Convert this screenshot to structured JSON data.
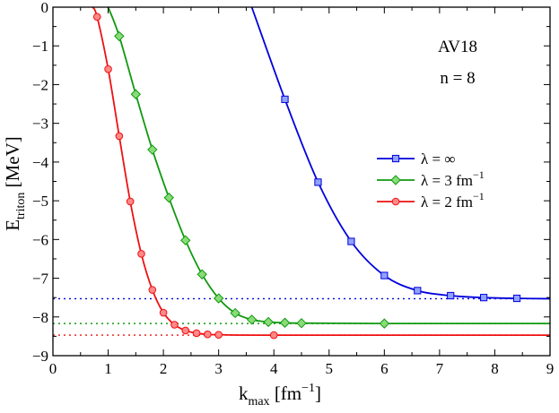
{
  "chart_data": {
    "type": "line",
    "annotations": [
      "AV18",
      "n = 8"
    ],
    "xlabel": {
      "main": "k",
      "sub": "max",
      "unit": "[fm",
      "unit_exp": "−1",
      "close": "]"
    },
    "ylabel": {
      "main": "E",
      "sub": "triton",
      "unit": "[MeV]"
    },
    "xlim": [
      0,
      9
    ],
    "ylim": [
      -9,
      0
    ],
    "xticks": [
      0,
      1,
      2,
      3,
      4,
      5,
      6,
      7,
      8,
      9
    ],
    "xtick_labels": [
      "0",
      "1",
      "2",
      "3",
      "4",
      "5",
      "6",
      "7",
      "8",
      "9"
    ],
    "yticks": [
      0,
      -1,
      -2,
      -3,
      -4,
      -5,
      -6,
      -7,
      -8,
      -9
    ],
    "ytick_labels": [
      "0",
      "−1",
      "−2",
      "−3",
      "−4",
      "−5",
      "−6",
      "−7",
      "−8",
      "−9"
    ],
    "series": [
      {
        "name": "λ = ∞",
        "legend": {
          "base": "λ = ∞",
          "exp": ""
        },
        "color": "#0000dd",
        "fill": "#8fa2ff",
        "marker": "square",
        "curve": [
          [
            3.6,
            0
          ],
          [
            4.2,
            -2.38
          ],
          [
            4.8,
            -4.52
          ],
          [
            5.4,
            -6.05
          ],
          [
            6.0,
            -6.93
          ],
          [
            6.6,
            -7.32
          ],
          [
            7.2,
            -7.45
          ],
          [
            7.8,
            -7.5
          ],
          [
            8.4,
            -7.52
          ],
          [
            9.0,
            -7.53
          ]
        ],
        "points": [
          [
            4.2,
            -2.38
          ],
          [
            4.8,
            -4.52
          ],
          [
            5.4,
            -6.05
          ],
          [
            6.0,
            -6.93
          ],
          [
            6.6,
            -7.32
          ],
          [
            7.2,
            -7.45
          ],
          [
            7.8,
            -7.5
          ],
          [
            8.4,
            -7.52
          ]
        ],
        "asymptote": -7.53
      },
      {
        "name": "λ = 3 fm−1",
        "legend": {
          "base": "λ = 3 fm",
          "exp": "−1"
        },
        "color": "#119911",
        "fill": "#88dd77",
        "marker": "diamond",
        "curve": [
          [
            1.0,
            0
          ],
          [
            1.2,
            -0.75
          ],
          [
            1.5,
            -2.25
          ],
          [
            1.8,
            -3.68
          ],
          [
            2.1,
            -4.92
          ],
          [
            2.4,
            -6.02
          ],
          [
            2.7,
            -6.9
          ],
          [
            3.0,
            -7.52
          ],
          [
            3.3,
            -7.9
          ],
          [
            3.6,
            -8.07
          ],
          [
            3.9,
            -8.13
          ],
          [
            4.2,
            -8.15
          ],
          [
            4.5,
            -8.16
          ],
          [
            6.0,
            -8.17
          ],
          [
            9.0,
            -8.17
          ]
        ],
        "points": [
          [
            1.2,
            -0.75
          ],
          [
            1.5,
            -2.25
          ],
          [
            1.8,
            -3.68
          ],
          [
            2.1,
            -4.92
          ],
          [
            2.4,
            -6.02
          ],
          [
            2.7,
            -6.9
          ],
          [
            3.0,
            -7.52
          ],
          [
            3.3,
            -7.9
          ],
          [
            3.6,
            -8.07
          ],
          [
            3.9,
            -8.13
          ],
          [
            4.2,
            -8.15
          ],
          [
            4.5,
            -8.16
          ],
          [
            6.0,
            -8.17
          ]
        ],
        "asymptote": -8.17
      },
      {
        "name": "λ = 2 fm−1",
        "legend": {
          "base": "λ = 2 fm",
          "exp": "−1"
        },
        "color": "#ee1111",
        "fill": "#ff8888",
        "marker": "circle",
        "curve": [
          [
            0.72,
            0
          ],
          [
            0.8,
            -0.25
          ],
          [
            1.0,
            -1.6
          ],
          [
            1.2,
            -3.33
          ],
          [
            1.4,
            -5.02
          ],
          [
            1.6,
            -6.37
          ],
          [
            1.8,
            -7.3
          ],
          [
            2.0,
            -7.89
          ],
          [
            2.2,
            -8.2
          ],
          [
            2.4,
            -8.35
          ],
          [
            2.6,
            -8.42
          ],
          [
            2.8,
            -8.45
          ],
          [
            3.0,
            -8.46
          ],
          [
            4.0,
            -8.47
          ],
          [
            9.0,
            -8.47
          ]
        ],
        "points": [
          [
            0.8,
            -0.25
          ],
          [
            1.0,
            -1.6
          ],
          [
            1.2,
            -3.33
          ],
          [
            1.4,
            -5.02
          ],
          [
            1.6,
            -6.37
          ],
          [
            1.8,
            -7.3
          ],
          [
            2.0,
            -7.89
          ],
          [
            2.2,
            -8.2
          ],
          [
            2.4,
            -8.35
          ],
          [
            2.6,
            -8.42
          ],
          [
            2.8,
            -8.45
          ],
          [
            3.0,
            -8.46
          ],
          [
            4.0,
            -8.47
          ]
        ],
        "asymptote": -8.47
      }
    ]
  }
}
